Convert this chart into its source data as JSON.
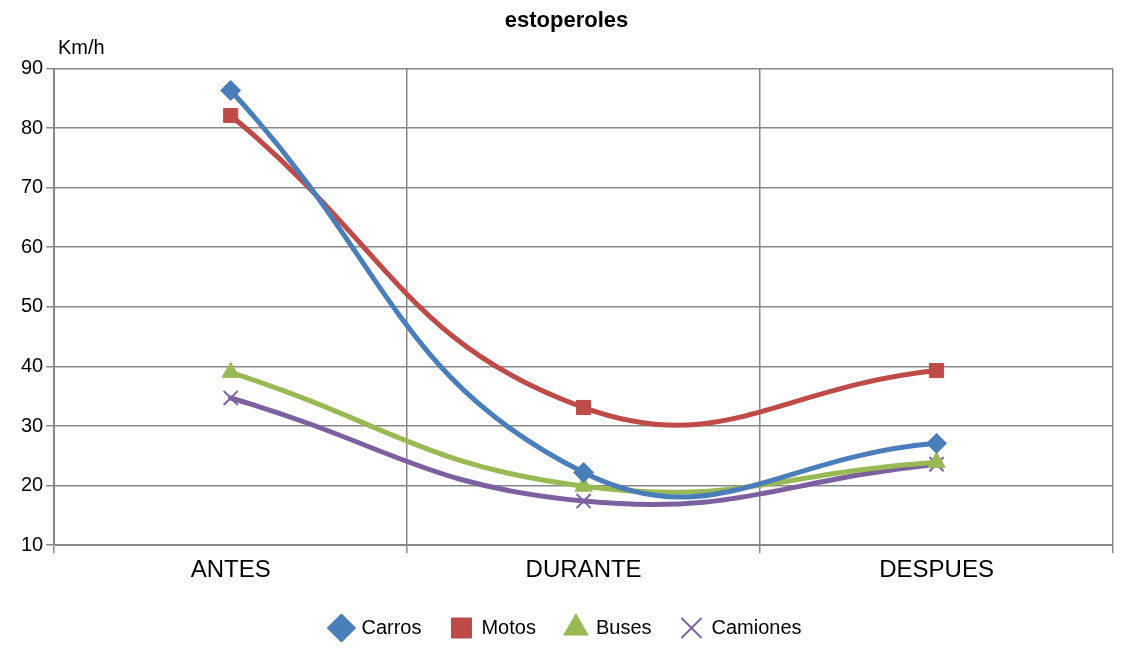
{
  "chart_data": {
    "type": "line",
    "title": "estoperoles",
    "ylabel": "Km/h",
    "categories": [
      "ANTES",
      "DURANTE",
      "DESPUES"
    ],
    "series": [
      {
        "name": "Carros",
        "color": "#4a7ebb",
        "marker": "diamond",
        "values": [
          86.3,
          22.2,
          27.1
        ]
      },
      {
        "name": "Motos",
        "color": "#be4b48",
        "marker": "square",
        "values": [
          82.1,
          33.1,
          39.3
        ]
      },
      {
        "name": "Buses",
        "color": "#98b954",
        "marker": "triangle",
        "values": [
          39,
          19.9,
          23.9
        ]
      },
      {
        "name": "Camiones",
        "color": "#7d60a0",
        "marker": "cross",
        "values": [
          34.7,
          17.4,
          23.6
        ]
      }
    ],
    "ylim": [
      10,
      90
    ],
    "yticks": [
      10,
      20,
      30,
      40,
      50,
      60,
      70,
      80,
      90
    ],
    "grid": true,
    "legend": "bottom",
    "line_style": "solid"
  }
}
